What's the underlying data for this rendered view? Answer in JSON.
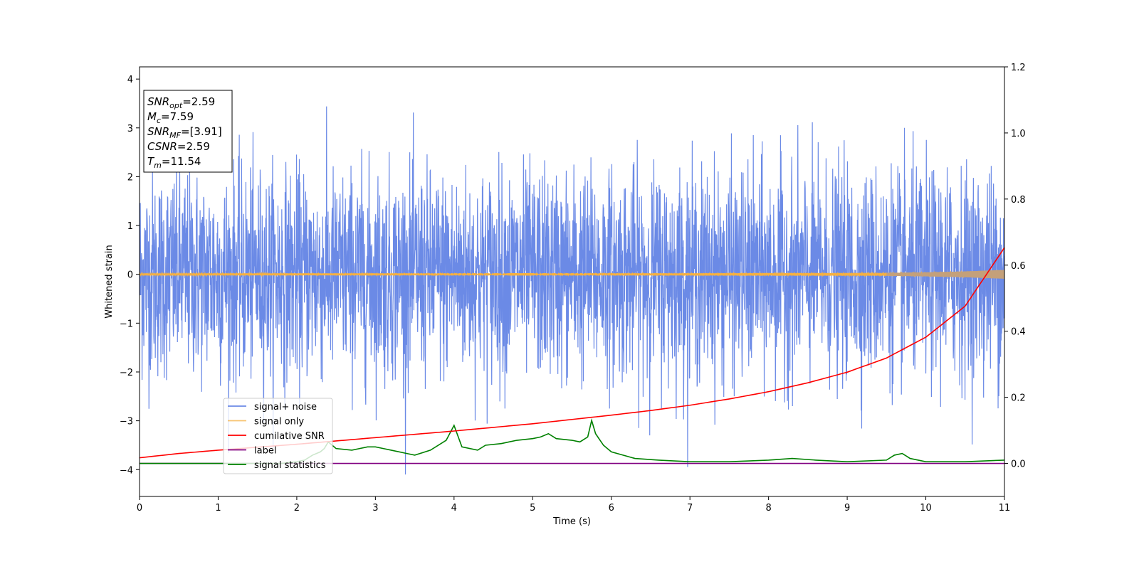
{
  "chart_data": {
    "type": "line",
    "xlabel": "Time (s)",
    "ylabel": "Whitened strain",
    "xlim": [
      0,
      11
    ],
    "ylim_left": [
      -4.55,
      4.25
    ],
    "ylim_right": [
      -0.1,
      1.2
    ],
    "x_ticks": [
      0,
      1,
      2,
      3,
      4,
      5,
      6,
      7,
      8,
      9,
      10,
      11
    ],
    "y_ticks_left": [
      -4,
      -3,
      -2,
      -1,
      0,
      1,
      2,
      3,
      4
    ],
    "y_ticks_right": [
      0.0,
      0.2,
      0.4,
      0.6,
      0.8,
      1.0,
      1.2
    ],
    "grid": false,
    "legend_position": "lower-left",
    "colors": {
      "signal_noise": "#6b8ae6",
      "signal_only": "#f5b041",
      "signal_only_tail": "#c4a07a",
      "cumulative_snr": "#ff0000",
      "label": "#800080",
      "signal_statistics": "#008000"
    },
    "series": [
      {
        "name": "signal+ noise",
        "axis": "left",
        "color": "#6b8ae6",
        "description_values": "noise band spanning approx -2.5 to 2.5, spikes to about +3.85 and -4.15"
      },
      {
        "name": "signal only",
        "axis": "left",
        "color": "#f5b041",
        "x": [
          0,
          9.5,
          10,
          10.5,
          11
        ],
        "y_amplitude": [
          0.02,
          0.03,
          0.04,
          0.06,
          0.09
        ]
      },
      {
        "name": "cumilative SNR",
        "axis": "right",
        "color": "#ff0000",
        "x": [
          0,
          0.5,
          1,
          1.5,
          2,
          2.5,
          3,
          3.5,
          4,
          4.5,
          5,
          5.5,
          6,
          6.5,
          7,
          7.5,
          8,
          8.5,
          9,
          9.5,
          10,
          10.5,
          11
        ],
        "y": [
          0.017,
          0.03,
          0.04,
          0.049,
          0.058,
          0.068,
          0.078,
          0.088,
          0.098,
          0.109,
          0.12,
          0.133,
          0.146,
          0.16,
          0.176,
          0.195,
          0.217,
          0.244,
          0.276,
          0.319,
          0.382,
          0.476,
          0.653
        ]
      },
      {
        "name": "label",
        "axis": "right",
        "color": "#800080",
        "x": [
          0,
          11
        ],
        "y": [
          0.0,
          0.0
        ]
      },
      {
        "name": "signal statistics",
        "axis": "right",
        "color": "#008000",
        "x": [
          0,
          1,
          1.8,
          2.0,
          2.1,
          2.2,
          2.3,
          2.35,
          2.4,
          2.5,
          2.7,
          2.8,
          2.9,
          3.0,
          3.1,
          3.2,
          3.4,
          3.5,
          3.7,
          3.9,
          4.0,
          4.1,
          4.3,
          4.4,
          4.6,
          4.7,
          4.8,
          5.0,
          5.1,
          5.2,
          5.3,
          5.5,
          5.6,
          5.7,
          5.75,
          5.8,
          5.9,
          6.0,
          6.3,
          6.6,
          7.0,
          7.5,
          8.0,
          8.3,
          8.6,
          9.0,
          9.5,
          9.6,
          9.7,
          9.8,
          10.0,
          10.5,
          11.0
        ],
        "y": [
          0.0,
          0.0,
          0.0,
          0.005,
          0.01,
          0.025,
          0.035,
          0.045,
          0.065,
          0.045,
          0.04,
          0.045,
          0.05,
          0.05,
          0.045,
          0.04,
          0.03,
          0.025,
          0.04,
          0.07,
          0.115,
          0.05,
          0.04,
          0.055,
          0.06,
          0.065,
          0.07,
          0.075,
          0.08,
          0.09,
          0.075,
          0.07,
          0.065,
          0.08,
          0.13,
          0.09,
          0.055,
          0.035,
          0.015,
          0.01,
          0.005,
          0.005,
          0.01,
          0.015,
          0.01,
          0.005,
          0.01,
          0.025,
          0.03,
          0.015,
          0.005,
          0.005,
          0.01
        ]
      }
    ],
    "annotation": {
      "lines": [
        {
          "base": "SNR",
          "sub": "opt",
          "value": "=2.59"
        },
        {
          "base": "M",
          "sub": "c",
          "value": "=7.59"
        },
        {
          "base": "SNR",
          "sub": "MF",
          "value": "=[3.91]"
        },
        {
          "base": "CSNR",
          "sub": "",
          "value": "=2.59"
        },
        {
          "base": "T",
          "sub": "m",
          "value": "=11.54"
        }
      ]
    }
  }
}
